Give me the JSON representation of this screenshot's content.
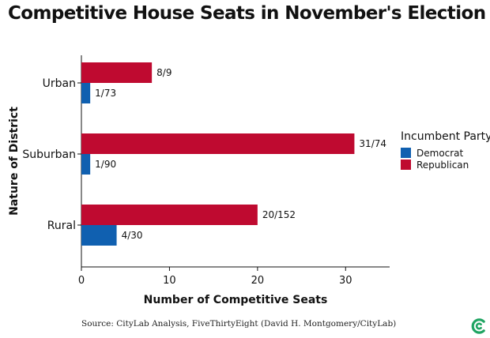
{
  "chart_data": {
    "type": "bar",
    "orientation": "horizontal",
    "title": "Competitive House Seats in November's Election",
    "xlabel": "Number of Competitive Seats",
    "ylabel": "Nature of District",
    "xlim": [
      0,
      35
    ],
    "xticks": [
      0,
      10,
      20,
      30
    ],
    "categories": [
      "Urban",
      "Suburban",
      "Rural"
    ],
    "legend": {
      "title": "Incumbent Party",
      "position": "right",
      "entries": [
        "Democrat",
        "Republican"
      ]
    },
    "series": [
      {
        "name": "Republican",
        "color": "#BF0A30",
        "values": [
          8,
          31,
          20
        ],
        "labels": [
          "8/9",
          "31/74",
          "20/152"
        ]
      },
      {
        "name": "Democrat",
        "color": "#1060B0",
        "values": [
          1,
          1,
          4
        ],
        "labels": [
          "1/73",
          "1/90",
          "4/30"
        ]
      }
    ],
    "grid": false,
    "source": "Source: CityLab Analysis, FiveThirtyEight (David H. Montgomery/CityLab)"
  },
  "logo": {
    "name": "citylab-logo-icon",
    "color": "#1FA462"
  }
}
